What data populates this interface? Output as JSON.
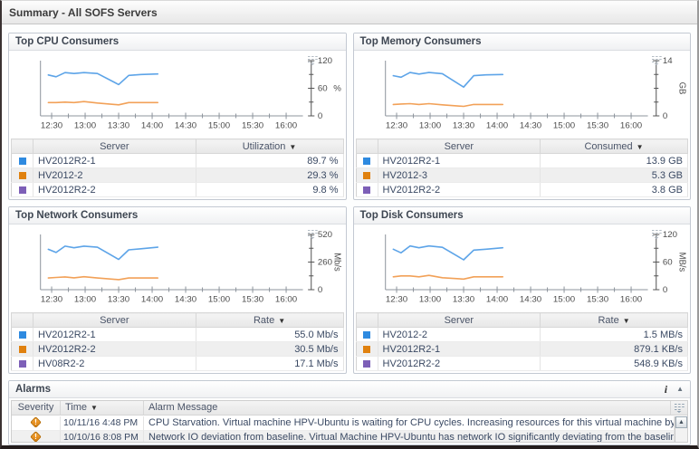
{
  "page": {
    "title": "Summary - All SOFS Servers"
  },
  "icons": {
    "sort_indicator": "▼",
    "collapse_arrow": "▲",
    "scroll_up_arrow": "▲",
    "info": "i"
  },
  "colors": {
    "series_blue": "#5da4e8",
    "series_orange": "#f2a158",
    "swatch_blue": "#2e8ae0",
    "swatch_orange": "#e0810f",
    "swatch_purple": "#7d5fb7",
    "warning_orange": "#e2820d"
  },
  "panels": [
    {
      "title": "Top CPU Consumers",
      "table": {
        "columns": [
          "Server",
          "Utilization"
        ],
        "rows": [
          {
            "swatch": "#2e8ae0",
            "server": "HV2012R2-1",
            "value": "89.7 %"
          },
          {
            "swatch": "#e0810f",
            "server": "HV2012-2",
            "value": "29.3 %"
          },
          {
            "swatch": "#7d5fb7",
            "server": "HV2012R2-2",
            "value": "9.8 %"
          }
        ]
      }
    },
    {
      "title": "Top Memory Consumers",
      "table": {
        "columns": [
          "Server",
          "Consumed"
        ],
        "rows": [
          {
            "swatch": "#2e8ae0",
            "server": "HV2012R2-1",
            "value": "13.9 GB"
          },
          {
            "swatch": "#e0810f",
            "server": "HV2012-3",
            "value": "5.3 GB"
          },
          {
            "swatch": "#7d5fb7",
            "server": "HV2012R2-2",
            "value": "3.8 GB"
          }
        ]
      }
    },
    {
      "title": "Top Network Consumers",
      "table": {
        "columns": [
          "Server",
          "Rate"
        ],
        "rows": [
          {
            "swatch": "#2e8ae0",
            "server": "HV2012R2-1",
            "value": "55.0 Mb/s"
          },
          {
            "swatch": "#e0810f",
            "server": "HV2012R2-2",
            "value": "30.5 Mb/s"
          },
          {
            "swatch": "#7d5fb7",
            "server": "HV08R2-2",
            "value": "17.1 Mb/s"
          }
        ]
      }
    },
    {
      "title": "Top Disk Consumers",
      "table": {
        "columns": [
          "Server",
          "Rate"
        ],
        "rows": [
          {
            "swatch": "#2e8ae0",
            "server": "HV2012-2",
            "value": "1.5 MB/s"
          },
          {
            "swatch": "#e0810f",
            "server": "HV2012R2-1",
            "value": "879.1 KB/s"
          },
          {
            "swatch": "#7d5fb7",
            "server": "HV2012R2-2",
            "value": "548.9 KB/s"
          }
        ]
      }
    }
  ],
  "chart_data": [
    {
      "type": "line",
      "title": "Top CPU Consumers",
      "ylabel": "%",
      "ylabel_rotated": false,
      "ylim": [
        0,
        120
      ],
      "yticks": [
        0,
        60,
        120
      ],
      "minor_yticks": [
        30,
        90
      ],
      "x_range_minutes": [
        740,
        975
      ],
      "x_tick_labels": [
        "12:30",
        "13:00",
        "13:30",
        "14:00",
        "14:30",
        "15:00",
        "15:30",
        "16:00"
      ],
      "series": [
        {
          "name": "HV2012R2-1",
          "color": "#5da4e8",
          "x_minutes": [
            747,
            754,
            762,
            770,
            779,
            791,
            810,
            819,
            830,
            845
          ],
          "values": [
            89,
            85,
            94,
            92,
            94,
            92,
            68,
            88,
            90,
            91
          ]
        },
        {
          "name": "HV2012-2",
          "color": "#f2a158",
          "x_minutes": [
            747,
            754,
            762,
            770,
            779,
            791,
            810,
            819,
            830,
            845
          ],
          "values": [
            29,
            29,
            30,
            29,
            31,
            28,
            24,
            29,
            29,
            29
          ]
        }
      ]
    },
    {
      "type": "line",
      "title": "Top Memory Consumers",
      "ylabel": "GB",
      "ylabel_rotated": true,
      "ylim": [
        0,
        14
      ],
      "yticks": [
        0,
        14
      ],
      "minor_yticks": [
        3.5,
        7,
        10.5
      ],
      "x_range_minutes": [
        740,
        975
      ],
      "x_tick_labels": [
        "12:30",
        "13:00",
        "13:30",
        "14:00",
        "14:30",
        "15:00",
        "15:30",
        "16:00"
      ],
      "series": [
        {
          "name": "HV2012R2-1",
          "color": "#5da4e8",
          "x_minutes": [
            747,
            754,
            762,
            770,
            779,
            791,
            810,
            819,
            830,
            845
          ],
          "values": [
            10.2,
            9.8,
            11.0,
            10.6,
            11.0,
            10.7,
            7.3,
            10.2,
            10.4,
            10.5
          ]
        },
        {
          "name": "HV2012-3",
          "color": "#f2a158",
          "x_minutes": [
            747,
            754,
            762,
            770,
            779,
            791,
            810,
            819,
            830,
            845
          ],
          "values": [
            2.9,
            3.0,
            3.1,
            2.9,
            3.1,
            2.8,
            2.4,
            2.9,
            2.9,
            2.9
          ]
        }
      ]
    },
    {
      "type": "line",
      "title": "Top Network Consumers",
      "ylabel": "Mb/s",
      "ylabel_rotated": true,
      "ylim": [
        0,
        520
      ],
      "yticks": [
        0,
        260,
        520
      ],
      "minor_yticks": [
        130,
        390
      ],
      "x_range_minutes": [
        740,
        975
      ],
      "x_tick_labels": [
        "12:30",
        "13:00",
        "13:30",
        "14:00",
        "14:30",
        "15:00",
        "15:30",
        "16:00"
      ],
      "series": [
        {
          "name": "HV2012R2-1",
          "color": "#5da4e8",
          "x_minutes": [
            747,
            754,
            762,
            770,
            779,
            791,
            810,
            819,
            830,
            845
          ],
          "values": [
            380,
            350,
            410,
            395,
            410,
            400,
            285,
            375,
            385,
            400
          ]
        },
        {
          "name": "HV2012R2-2",
          "color": "#f2a158",
          "x_minutes": [
            747,
            754,
            762,
            770,
            779,
            791,
            810,
            819,
            830,
            845
          ],
          "values": [
            110,
            115,
            120,
            112,
            122,
            110,
            95,
            110,
            110,
            110
          ]
        }
      ]
    },
    {
      "type": "line",
      "title": "Top Disk Consumers",
      "ylabel": "MB/s",
      "ylabel_rotated": true,
      "ylim": [
        0,
        120
      ],
      "yticks": [
        0,
        60,
        120
      ],
      "minor_yticks": [
        30,
        90
      ],
      "x_range_minutes": [
        740,
        975
      ],
      "x_tick_labels": [
        "12:30",
        "13:00",
        "13:30",
        "14:00",
        "14:30",
        "15:00",
        "15:30",
        "16:00"
      ],
      "series": [
        {
          "name": "HV2012-2",
          "color": "#5da4e8",
          "x_minutes": [
            747,
            754,
            762,
            770,
            779,
            791,
            810,
            819,
            830,
            845
          ],
          "values": [
            88,
            80,
            95,
            91,
            95,
            92,
            65,
            86,
            88,
            91
          ]
        },
        {
          "name": "HV2012R2-1",
          "color": "#f2a158",
          "x_minutes": [
            747,
            754,
            762,
            770,
            779,
            791,
            810,
            819,
            830,
            845
          ],
          "values": [
            28,
            30,
            30,
            28,
            31,
            26,
            23,
            28,
            28,
            28
          ]
        }
      ]
    }
  ],
  "alarms": {
    "title": "Alarms",
    "columns": [
      "Severity",
      "Time",
      "Alarm Message"
    ],
    "rows": [
      {
        "severity": "warning",
        "time": "10/11/16 4:48 PM",
        "message": "CPU Starvation. Virtual machine HPV-Ubuntu is waiting for CPU cycles. Increasing resources for this virtual machine by adjusting t"
      },
      {
        "severity": "warning",
        "time": "10/10/16 8:08 PM",
        "message": "Network IO deviation from baseline. Virtual Machine HPV-Ubuntu has network IO significantly deviating from the baseline."
      }
    ]
  }
}
